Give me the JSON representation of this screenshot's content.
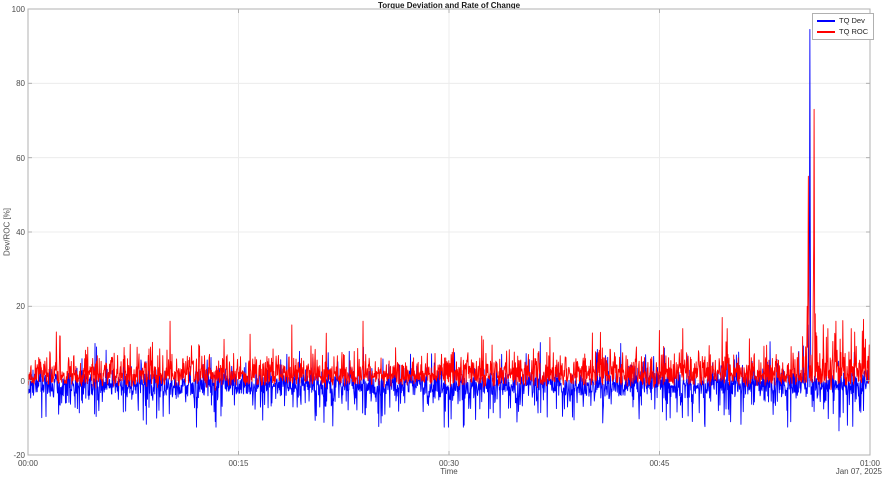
{
  "chart_data": {
    "type": "line",
    "title": "Torque Deviation and Rate of Change",
    "xlabel": "Time",
    "ylabel": "Dev/ROC [%]",
    "date_annotation": "Jan 07, 2025",
    "xlim_seconds": [
      0,
      3600
    ],
    "ylim": [
      -20,
      100
    ],
    "grid": true,
    "x_ticks": [
      {
        "t": 0,
        "label": "00:00"
      },
      {
        "t": 900,
        "label": "00:15"
      },
      {
        "t": 1800,
        "label": "00:30"
      },
      {
        "t": 2700,
        "label": "00:45"
      },
      {
        "t": 3600,
        "label": "01:00"
      }
    ],
    "y_ticks": [
      {
        "v": -20,
        "label": "-20"
      },
      {
        "v": 0,
        "label": "0"
      },
      {
        "v": 20,
        "label": "20"
      },
      {
        "v": 40,
        "label": "40"
      },
      {
        "v": 60,
        "label": "60"
      },
      {
        "v": 80,
        "label": "80"
      },
      {
        "v": 100,
        "label": "100"
      }
    ],
    "legend": {
      "position": "northeast",
      "entries": [
        {
          "label": "TQ Dev",
          "color": "#0000ff"
        },
        {
          "label": "TQ ROC",
          "color": "#ff0000"
        }
      ]
    },
    "colors": {
      "background": "#ffffff",
      "axis": "#b0b0b0",
      "grid": "#ececec",
      "title_text": "#1a1a1a",
      "label_text": "#4b4b4b"
    },
    "series": [
      {
        "name": "TQ Dev",
        "color": "#0000ff",
        "line_width": 0.9,
        "samples": 2200,
        "seed": 1337,
        "model": "gaussian",
        "baseline": -1.1,
        "std": 2.1,
        "pos_spike_prob": 0.035,
        "pos_spike_range": [
          3.5,
          9
        ],
        "neg_spike_prob": 0.09,
        "neg_spike_range": [
          2.5,
          9.5
        ],
        "clamp": [
          -12.5,
          10.5
        ],
        "post_anomaly_t": 3365,
        "post_neg_spike_prob": 0.13,
        "post_clamp": [
          -13.5,
          10.5
        ],
        "peak": {
          "t": 3343,
          "value": 94.5
        },
        "events": [
          [
            287,
            10
          ],
          [
            800,
            -11
          ],
          [
            1434,
            9
          ],
          [
            2534,
            10
          ],
          [
            2840,
            -11
          ],
          [
            3338,
            15
          ],
          [
            3343,
            94.5
          ],
          [
            3347,
            8
          ],
          [
            3353,
            -7
          ],
          [
            3467,
            -13.5
          ],
          [
            3503,
            -12
          ],
          [
            3560,
            -8.5
          ]
        ]
      },
      {
        "name": "TQ ROC",
        "color": "#ff0000",
        "line_width": 0.9,
        "samples": 2200,
        "seed": 777,
        "model": "halfgaussian",
        "baseline": -0.9,
        "scale": 3.7,
        "jitter": 0.6,
        "spike_prob": 0.022,
        "spike_range": [
          3,
          8.5
        ],
        "clamp": [
          -3,
          16.5
        ],
        "post_anomaly_t": 3365,
        "post_scale_mult": 1.4,
        "post_spike_prob": 0.07,
        "post_clamp": [
          -3.5,
          17
        ],
        "peaks": [
          {
            "t": 3336,
            "value": 55
          },
          {
            "t": 3361,
            "value": 73
          }
        ],
        "events": [
          [
            137,
            12
          ],
          [
            608,
            16
          ],
          [
            950,
            12.5
          ],
          [
            1128,
            15
          ],
          [
            1433,
            16
          ],
          [
            1940,
            12
          ],
          [
            2448,
            13
          ],
          [
            2700,
            13.5
          ],
          [
            2800,
            14
          ],
          [
            2968,
            17
          ],
          [
            2990,
            14
          ],
          [
            3332,
            20
          ],
          [
            3336,
            55
          ],
          [
            3340,
            10
          ],
          [
            3357,
            25
          ],
          [
            3361,
            73
          ],
          [
            3366,
            18
          ],
          [
            3372,
            12
          ],
          [
            3420,
            14
          ],
          [
            3455,
            16
          ],
          [
            3520,
            14
          ],
          [
            3572,
            16.5
          ]
        ]
      }
    ]
  }
}
